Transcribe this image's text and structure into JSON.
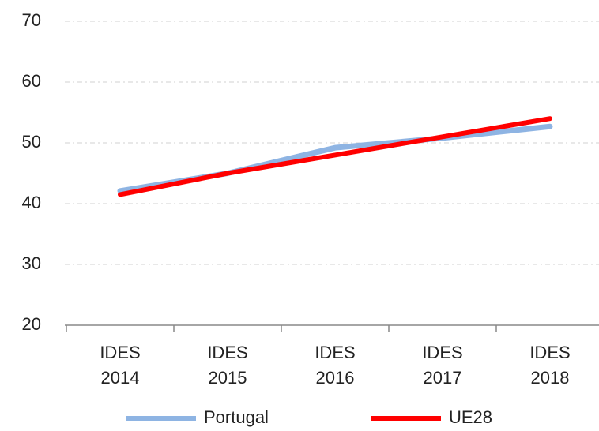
{
  "chart_data": {
    "type": "line",
    "categories": [
      "IDES 2014",
      "IDES 2015",
      "IDES 2016",
      "IDES 2017",
      "IDES 2018"
    ],
    "series": [
      {
        "name": "Portugal",
        "color": "#8eb4e3",
        "values": [
          42.1,
          45.0,
          49.2,
          50.8,
          52.7
        ]
      },
      {
        "name": "UE28",
        "color": "#ff0000",
        "values": [
          41.5,
          45.0,
          48.0,
          51.0,
          54.0
        ]
      }
    ],
    "ylim": [
      20,
      70
    ],
    "yticks": [
      20,
      30,
      40,
      50,
      60,
      70
    ],
    "grid": true,
    "legend": "bottom"
  }
}
